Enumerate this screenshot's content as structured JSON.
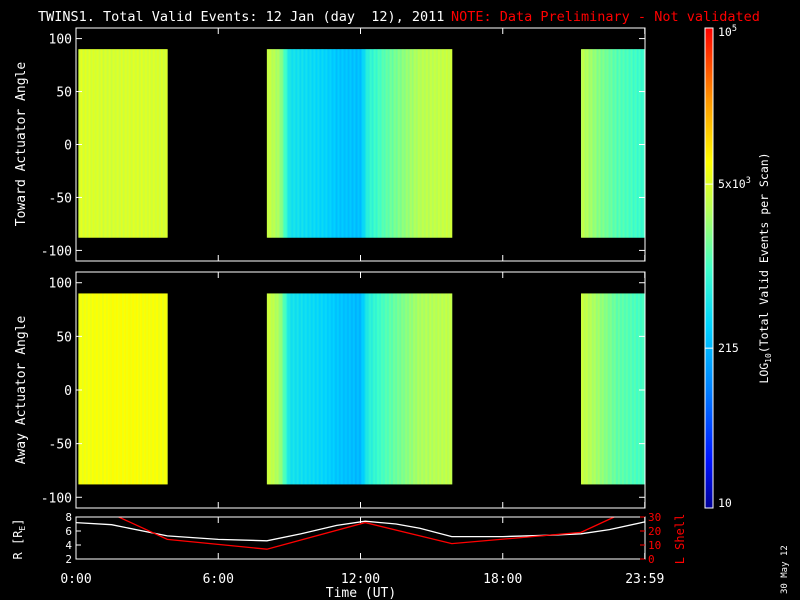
{
  "title": {
    "main": "TWINS1. Total Valid Events: 12 Jan (day  12), 2011",
    "note": "NOTE: Data Preliminary - Not validated",
    "note_color": "#ff0000"
  },
  "date_stamp": "30 May 12",
  "chart_data": [
    {
      "type": "heatmap",
      "name": "toward",
      "ylabel": "Toward Actuator Angle",
      "ylim": [
        -110,
        110
      ],
      "yticks": [
        100,
        50,
        0,
        -50,
        -100
      ],
      "angle_range": [
        -88,
        90
      ],
      "xlim_hours": [
        0,
        24
      ],
      "data_intervals_hours": [
        [
          0.1,
          3.85
        ],
        [
          8.05,
          15.85
        ],
        [
          21.3,
          23.99
        ]
      ],
      "log_value_profile": [
        [
          0.1,
          3.7
        ],
        [
          1.5,
          3.65
        ],
        [
          2.5,
          3.68
        ],
        [
          3.85,
          3.66
        ],
        [
          8.05,
          3.62
        ],
        [
          8.6,
          3.4
        ],
        [
          9.0,
          2.7
        ],
        [
          10.5,
          2.55
        ],
        [
          11.0,
          2.45
        ],
        [
          12.0,
          2.4
        ],
        [
          12.3,
          2.85
        ],
        [
          13.0,
          3.1
        ],
        [
          14.5,
          3.5
        ],
        [
          15.85,
          3.6
        ],
        [
          21.3,
          3.55
        ],
        [
          22.0,
          3.3
        ],
        [
          22.8,
          3.1
        ],
        [
          23.99,
          2.95
        ]
      ]
    },
    {
      "type": "heatmap",
      "name": "away",
      "ylabel": "Away Actuator Angle",
      "ylim": [
        -110,
        110
      ],
      "yticks": [
        100,
        50,
        0,
        -50,
        -100
      ],
      "angle_range": [
        -88,
        90
      ],
      "xlim_hours": [
        0,
        24
      ],
      "data_intervals_hours": [
        [
          0.1,
          3.85
        ],
        [
          8.05,
          15.85
        ],
        [
          21.3,
          23.99
        ]
      ],
      "log_value_profile": [
        [
          0.1,
          3.8
        ],
        [
          1.5,
          3.85
        ],
        [
          2.5,
          3.85
        ],
        [
          3.85,
          3.82
        ],
        [
          8.05,
          3.65
        ],
        [
          8.6,
          3.4
        ],
        [
          9.0,
          2.7
        ],
        [
          10.5,
          2.55
        ],
        [
          11.0,
          2.45
        ],
        [
          12.0,
          2.35
        ],
        [
          12.3,
          2.8
        ],
        [
          13.0,
          3.05
        ],
        [
          14.5,
          3.45
        ],
        [
          15.85,
          3.55
        ],
        [
          21.3,
          3.6
        ],
        [
          22.0,
          3.4
        ],
        [
          22.8,
          3.15
        ],
        [
          23.99,
          3.0
        ]
      ]
    },
    {
      "type": "line",
      "name": "orbit",
      "ylabel": "R [R",
      "ylabel_sub": "E",
      "ylabel_end": "]",
      "ylim": [
        2,
        8
      ],
      "yticks": [
        8,
        6,
        4,
        2
      ],
      "y2label": "L Shell",
      "y2lim": [
        0,
        30
      ],
      "y2ticks": [
        30,
        20,
        10,
        0
      ],
      "y2_color": "#ff0000",
      "series": [
        {
          "color": "#ffffff",
          "x": [
            0,
            1.5,
            3.85,
            6,
            8.05,
            9.5,
            11,
            12.2,
            13.5,
            14.5,
            15.85,
            18,
            20,
            21.3,
            22.5,
            23.99
          ],
          "y": [
            7.2,
            6.9,
            5.3,
            4.8,
            4.6,
            5.6,
            6.8,
            7.4,
            7.0,
            6.4,
            5.2,
            5.2,
            5.4,
            5.6,
            6.2,
            7.3
          ]
        },
        {
          "color": "#ff0000",
          "axis": "y2",
          "x": [
            1.8,
            3.85,
            8.05,
            12.2,
            15.85,
            21.3,
            22.7
          ],
          "y": [
            30,
            14,
            7,
            26,
            11,
            19,
            30
          ]
        }
      ]
    }
  ],
  "xaxis": {
    "label": "Time (UT)",
    "ticks": [
      {
        "hour": 0,
        "label": "0:00"
      },
      {
        "hour": 6,
        "label": "6:00"
      },
      {
        "hour": 12,
        "label": "12:00"
      },
      {
        "hour": 18,
        "label": "18:00"
      },
      {
        "hour": 23.99,
        "label": "23:59"
      }
    ]
  },
  "colorbar": {
    "label": "LOG",
    "label_sub": "10",
    "label_end": "(Total Valid Events per Scan)",
    "log_range": [
      1,
      5
    ],
    "ticks": [
      {
        "base": "10",
        "exp": "5",
        "log": 5
      },
      {
        "base": "5x10",
        "exp": "3",
        "log": 3.699
      },
      {
        "base": "215",
        "exp": "",
        "log": 2.332
      },
      {
        "base": "10",
        "exp": "",
        "log": 1
      }
    ]
  }
}
